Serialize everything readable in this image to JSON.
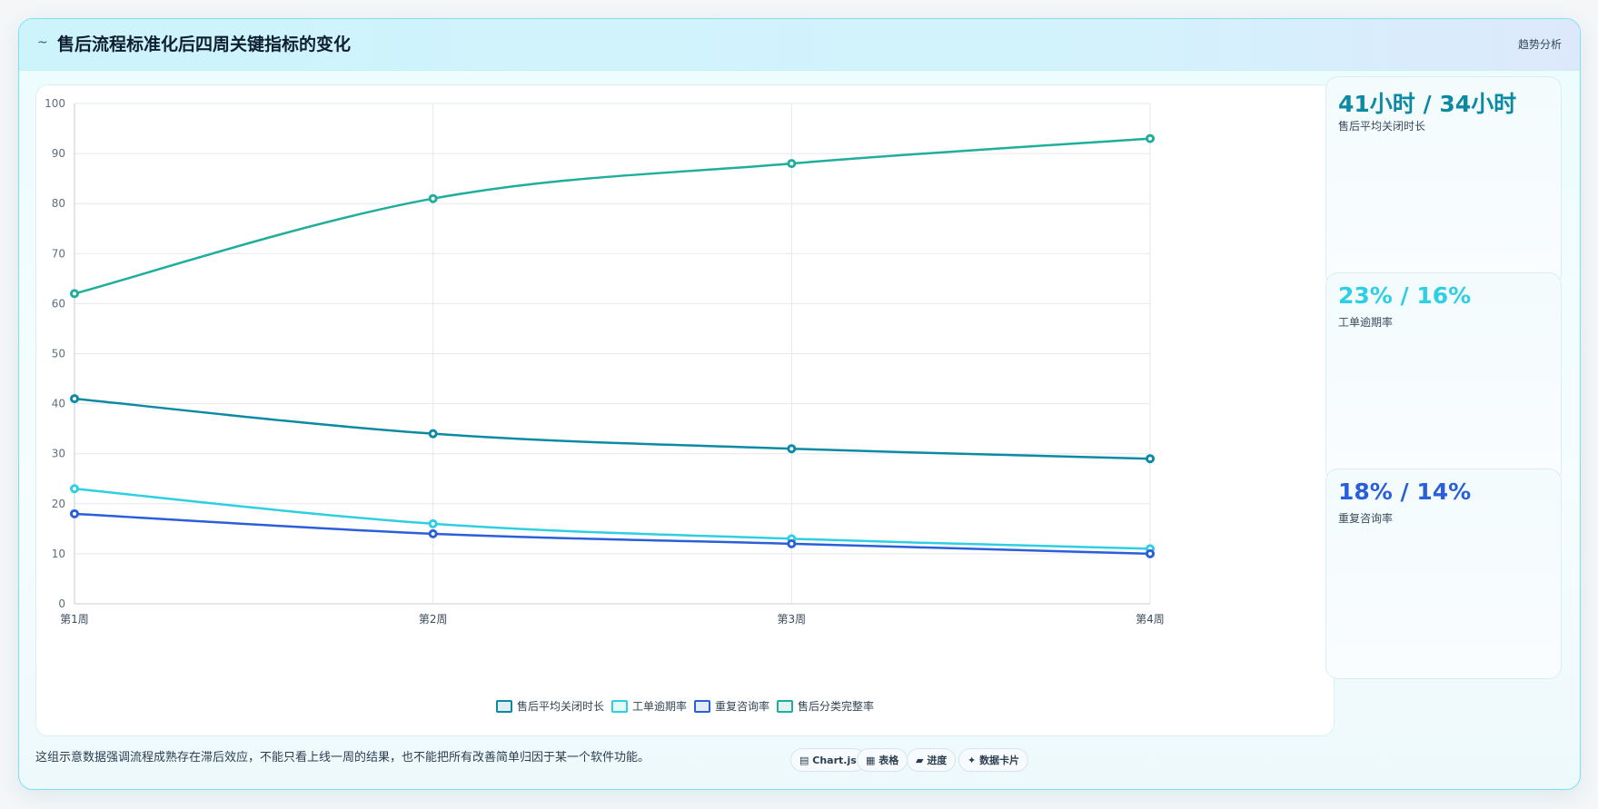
{
  "header": {
    "icon": "~",
    "title": "售后流程标准化后四周关键指标的变化",
    "badge": "趋势分析"
  },
  "kpis": [
    {
      "value": "41小时 / 34小时",
      "label": "售后平均关闭时长",
      "color": "#0d8aa3"
    },
    {
      "value": "23% / 16%",
      "label": "工单逾期率",
      "color": "#2ecfe3"
    },
    {
      "value": "18% / 14%",
      "label": "重复咨询率",
      "color": "#2b5fd9"
    }
  ],
  "footnote": "这组示意数据强调流程成熟存在滞后效应，不能只看上线一周的结果，也不能把所有改善简单归因于某一个软件功能。",
  "chips": [
    {
      "icon": "chart-icon",
      "glyph": "▤",
      "label": "Chart.js"
    },
    {
      "icon": "table-icon",
      "glyph": "▦",
      "label": "表格"
    },
    {
      "icon": "progress-icon",
      "glyph": "▰",
      "label": "进度"
    },
    {
      "icon": "data-card-icon",
      "glyph": "✦",
      "label": "数据卡片"
    }
  ],
  "chart_data": {
    "type": "line",
    "categories": [
      "第1周",
      "第2周",
      "第3周",
      "第4周"
    ],
    "ylim": [
      0,
      100
    ],
    "yticks": [
      0,
      10,
      20,
      30,
      40,
      50,
      60,
      70,
      80,
      90,
      100
    ],
    "grid": true,
    "legend_position": "bottom",
    "series": [
      {
        "name": "售后平均关闭时长",
        "values": [
          41,
          34,
          31,
          29
        ],
        "color": "#0d8aa3"
      },
      {
        "name": "工单逾期率",
        "values": [
          23,
          16,
          13,
          11
        ],
        "color": "#2ecfe3"
      },
      {
        "name": "重复咨询率",
        "values": [
          18,
          14,
          12,
          10
        ],
        "color": "#2b5fd9"
      },
      {
        "name": "售后分类完整率",
        "values": [
          62,
          81,
          88,
          93
        ],
        "color": "#1fae9b"
      }
    ]
  }
}
